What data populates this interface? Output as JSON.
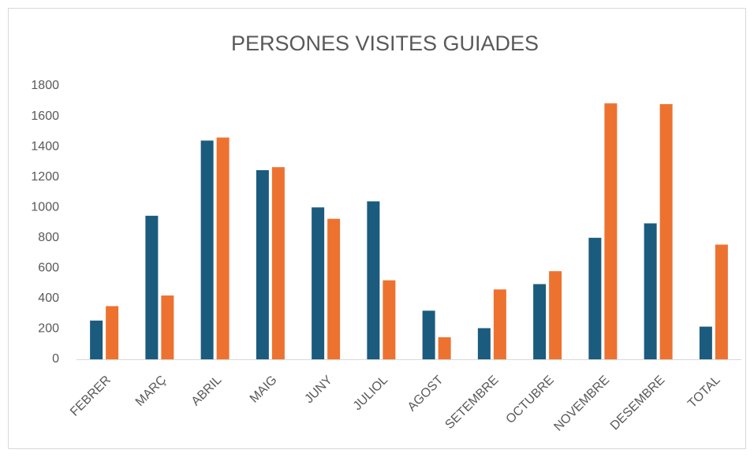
{
  "chart_data": {
    "type": "bar",
    "title": "PERSONES VISITES GUIADES",
    "categories": [
      "FEBRER",
      "MARÇ",
      "ABRIL",
      "MAIG",
      "JUNY",
      "JULIOL",
      "AGOST",
      "SETEMBRE",
      "OCTUBRE",
      "NOVEMBRE",
      "DESEMBRE",
      "TOTAL"
    ],
    "series": [
      {
        "color": "#1b5b7e",
        "values": [
          255,
          945,
          1440,
          1245,
          1000,
          1040,
          320,
          205,
          495,
          800,
          895,
          215
        ]
      },
      {
        "color": "#ed7230",
        "values": [
          350,
          420,
          1460,
          1265,
          925,
          520,
          145,
          460,
          580,
          1685,
          1680,
          755
        ]
      }
    ],
    "ylim": [
      0,
      1800
    ],
    "yticks": [
      0,
      200,
      400,
      600,
      800,
      1000,
      1200,
      1400,
      1600,
      1800
    ],
    "grid": false
  }
}
